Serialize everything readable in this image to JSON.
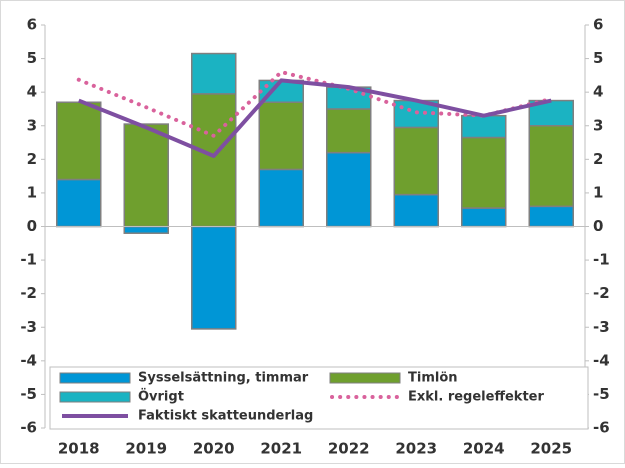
{
  "chart_data": {
    "type": "bar",
    "stacked": true,
    "categories": [
      "2018",
      "2019",
      "2020",
      "2021",
      "2022",
      "2023",
      "2024",
      "2025"
    ],
    "series": [
      {
        "name": "Sysselsättning, timmar",
        "type": "bar",
        "color": "#0096d6",
        "values": [
          1.4,
          -0.2,
          -3.05,
          1.7,
          2.2,
          0.95,
          0.55,
          0.6
        ]
      },
      {
        "name": "Timlön",
        "type": "bar",
        "color": "#6f9f2e",
        "values": [
          2.3,
          3.05,
          3.95,
          2.0,
          1.3,
          2.0,
          2.1,
          2.4
        ]
      },
      {
        "name": "Övrigt",
        "type": "bar",
        "color": "#1bb3c2",
        "values": [
          0,
          0,
          1.2,
          0.65,
          0.65,
          0.8,
          0.65,
          0.75
        ]
      },
      {
        "name": "Exkl. regeleffekter",
        "type": "line",
        "style": "dotted",
        "color": "#d9629c",
        "values": [
          4.37,
          3.55,
          2.7,
          4.6,
          4.1,
          3.4,
          3.3,
          3.8
        ]
      },
      {
        "name": "Faktiskt skatteunderlag",
        "type": "line",
        "style": "solid",
        "color": "#7e4fa1",
        "values": [
          3.75,
          2.95,
          2.1,
          4.35,
          4.15,
          3.75,
          3.3,
          3.75
        ]
      }
    ],
    "ylim": [
      -6,
      6
    ],
    "yticks": [
      -6,
      -5,
      -4,
      -3,
      -2,
      -1,
      0,
      1,
      2,
      3,
      4,
      5,
      6
    ],
    "y2lim": [
      -6,
      6
    ],
    "y2ticks": [
      -6,
      -5,
      -4,
      -3,
      -2,
      -1,
      0,
      1,
      2,
      3,
      4,
      5,
      6
    ],
    "grid": false
  }
}
